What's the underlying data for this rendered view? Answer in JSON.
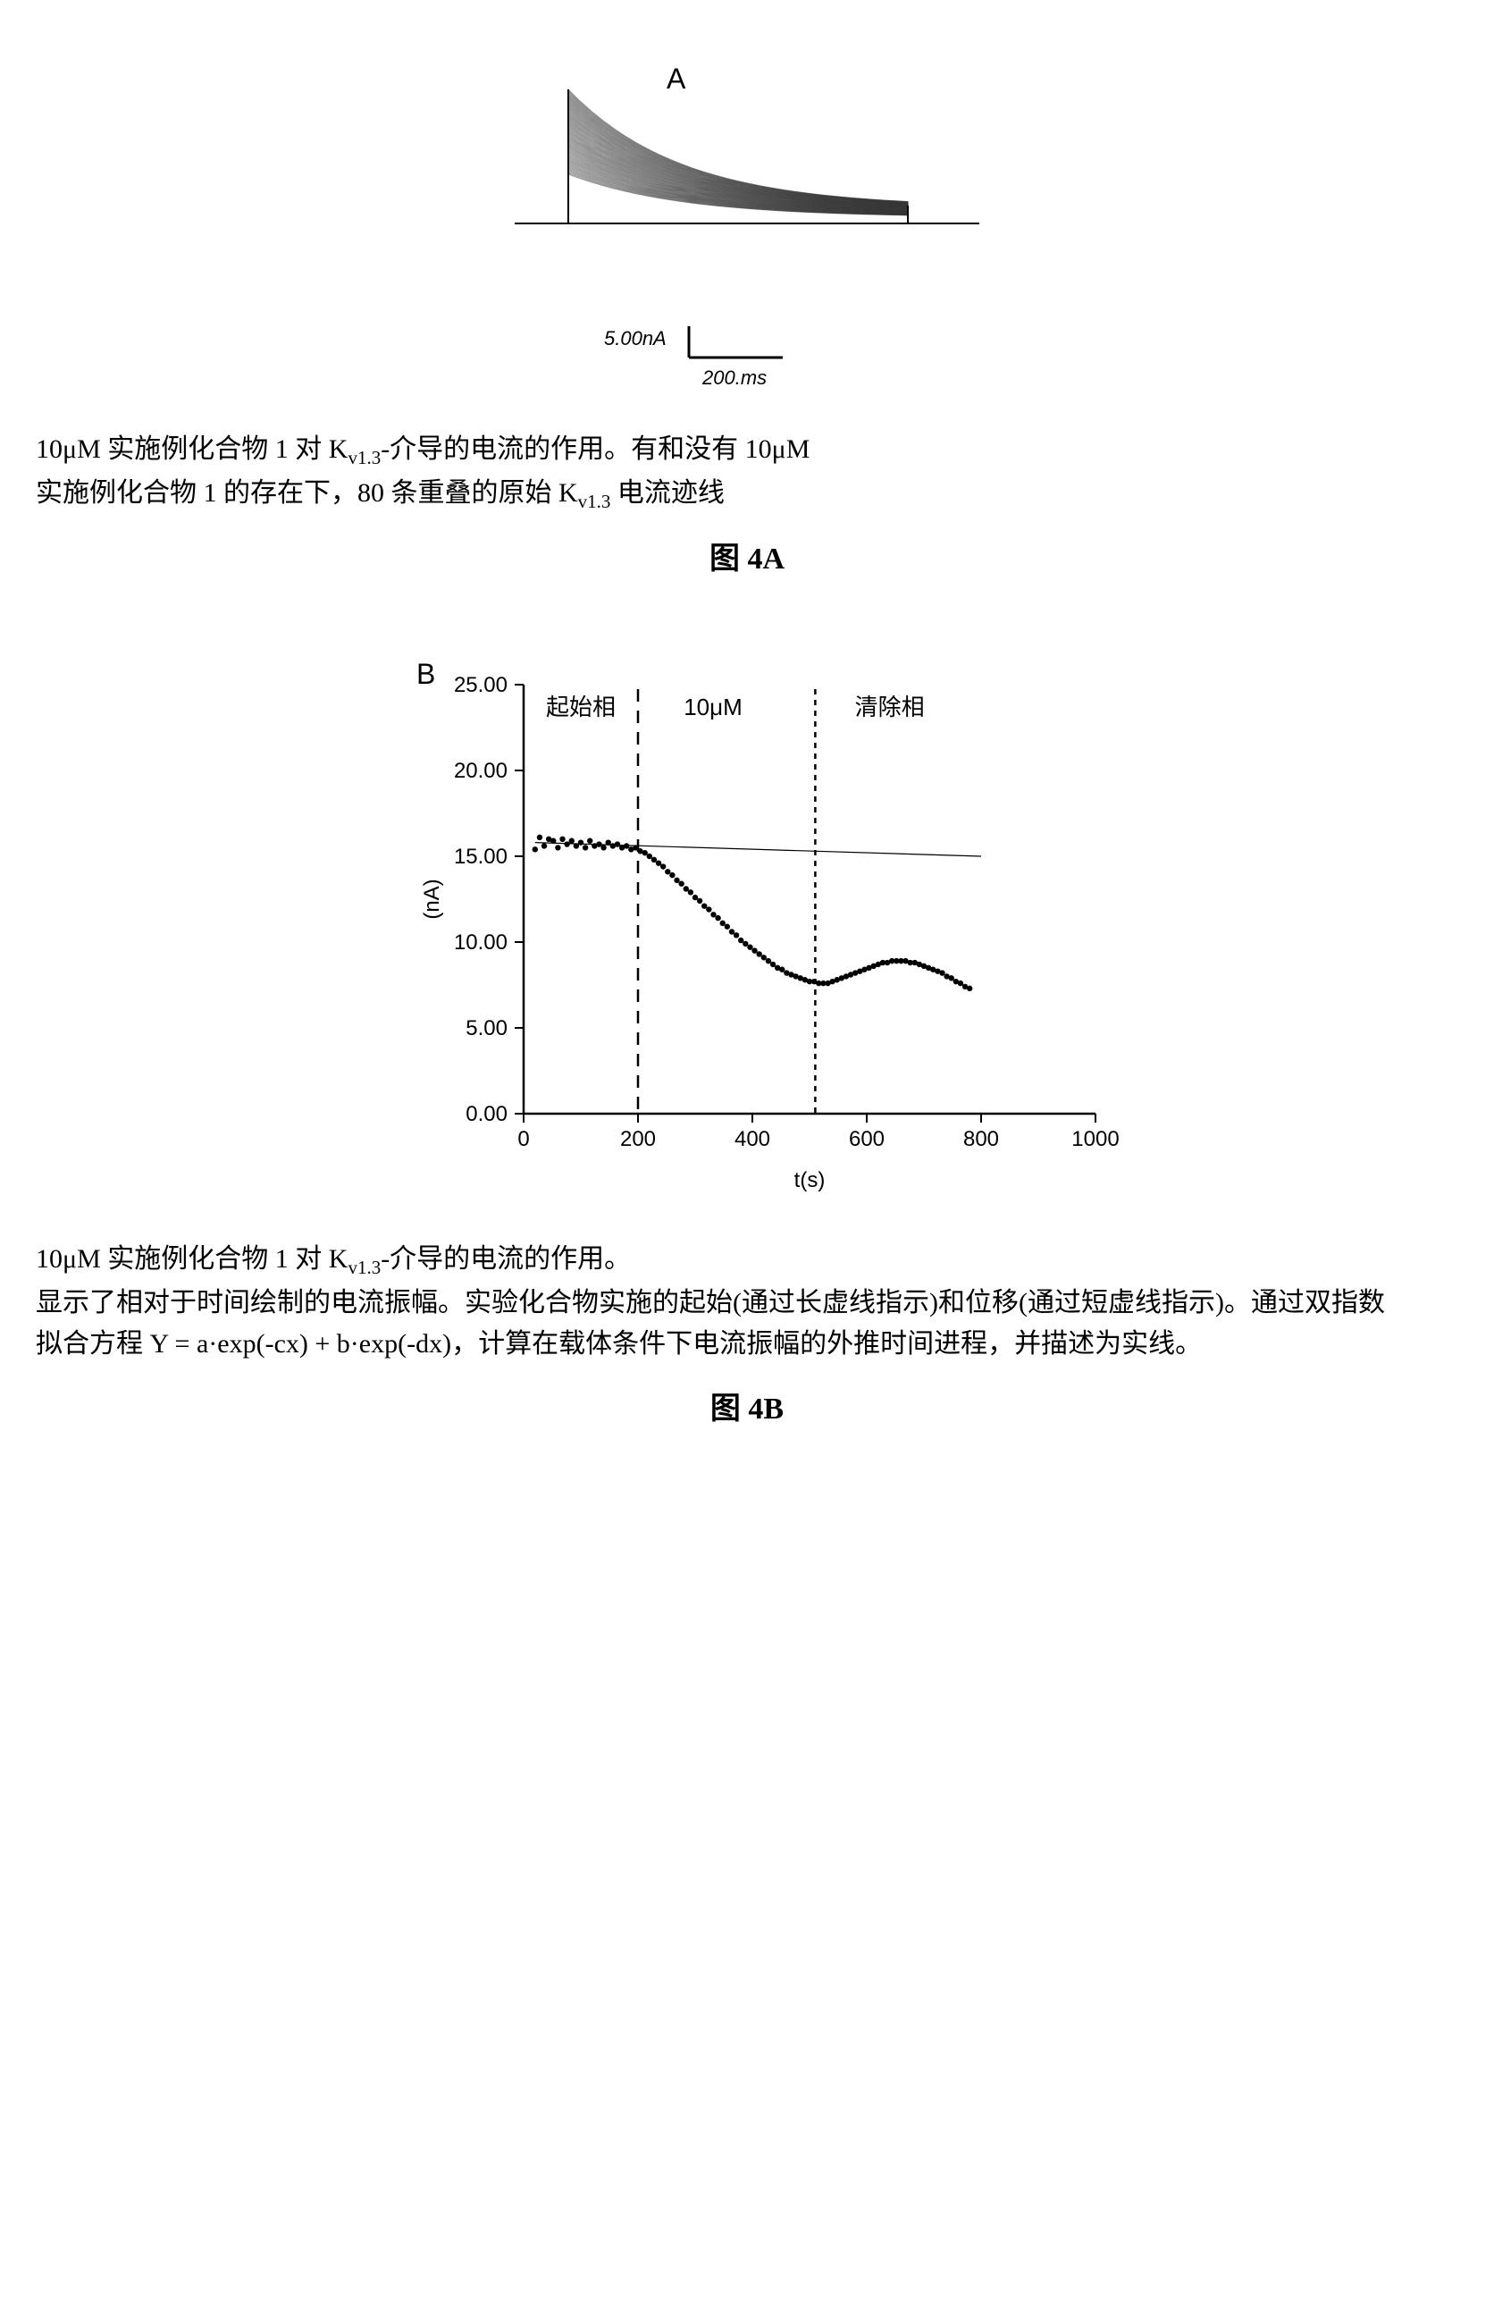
{
  "figureA": {
    "panel_label": "A",
    "scale_y": "5.00nA",
    "scale_x": "200.ms",
    "scale_line_color": "#000000",
    "trace_count": 80,
    "trace_color": "#2b2b2b",
    "baseline_color": "#000000",
    "caption_line1": "10μM 实施例化合物 1 对 K",
    "caption_sub1": "v1.3",
    "caption_line1b": "-介导的电流的作用。有和没有 10μM",
    "caption_line2a": "实施例化合物 1 的存在下，80 条重叠的原始 K",
    "caption_sub2": "v1.3",
    "caption_line2b": " 电流迹线",
    "title": "图 4A"
  },
  "figureB": {
    "panel_label": "B",
    "chart": {
      "type": "scatter-line",
      "xlim": [
        0,
        1000
      ],
      "ylim": [
        0,
        25
      ],
      "xticks": [
        0,
        200,
        400,
        600,
        800,
        1000
      ],
      "yticks": [
        0.0,
        5.0,
        10.0,
        15.0,
        20.0,
        25.0
      ],
      "ytick_labels": [
        "0.00",
        "5.00",
        "10.00",
        "15.00",
        "20.00",
        "25.00"
      ],
      "xlabel": "t(s)",
      "ylabel": "(nA)",
      "axis_color": "#000000",
      "tick_fontsize": 24,
      "label_fontsize": 24,
      "background_color": "#ffffff",
      "phase_start_label": "起始相",
      "phase_conc_label": "10μM",
      "phase_wash_label": "清除相",
      "vline1_x": 200,
      "vline2_x": 510,
      "vline1_dash": "14 10",
      "vline2_dash": "6 6",
      "vline_color": "#000000",
      "fit_line_color": "#000000",
      "fit_line_width": 1.2,
      "fit_points": [
        {
          "x": 20,
          "y": 15.8
        },
        {
          "x": 800,
          "y": 15.0
        }
      ],
      "marker_color": "#000000",
      "marker_size": 3.2,
      "data_points": [
        {
          "x": 20,
          "y": 15.4
        },
        {
          "x": 28,
          "y": 16.1
        },
        {
          "x": 36,
          "y": 15.6
        },
        {
          "x": 44,
          "y": 16.0
        },
        {
          "x": 52,
          "y": 15.9
        },
        {
          "x": 60,
          "y": 15.5
        },
        {
          "x": 68,
          "y": 16.0
        },
        {
          "x": 76,
          "y": 15.7
        },
        {
          "x": 84,
          "y": 15.9
        },
        {
          "x": 92,
          "y": 15.6
        },
        {
          "x": 100,
          "y": 15.8
        },
        {
          "x": 108,
          "y": 15.5
        },
        {
          "x": 116,
          "y": 15.9
        },
        {
          "x": 124,
          "y": 15.6
        },
        {
          "x": 132,
          "y": 15.7
        },
        {
          "x": 140,
          "y": 15.5
        },
        {
          "x": 148,
          "y": 15.8
        },
        {
          "x": 156,
          "y": 15.6
        },
        {
          "x": 164,
          "y": 15.7
        },
        {
          "x": 172,
          "y": 15.5
        },
        {
          "x": 180,
          "y": 15.6
        },
        {
          "x": 188,
          "y": 15.4
        },
        {
          "x": 196,
          "y": 15.5
        },
        {
          "x": 204,
          "y": 15.3
        },
        {
          "x": 212,
          "y": 15.2
        },
        {
          "x": 220,
          "y": 15.0
        },
        {
          "x": 228,
          "y": 14.8
        },
        {
          "x": 236,
          "y": 14.6
        },
        {
          "x": 244,
          "y": 14.4
        },
        {
          "x": 252,
          "y": 14.1
        },
        {
          "x": 260,
          "y": 13.9
        },
        {
          "x": 268,
          "y": 13.6
        },
        {
          "x": 276,
          "y": 13.4
        },
        {
          "x": 284,
          "y": 13.1
        },
        {
          "x": 292,
          "y": 12.9
        },
        {
          "x": 300,
          "y": 12.6
        },
        {
          "x": 308,
          "y": 12.4
        },
        {
          "x": 316,
          "y": 12.1
        },
        {
          "x": 324,
          "y": 11.9
        },
        {
          "x": 332,
          "y": 11.6
        },
        {
          "x": 340,
          "y": 11.4
        },
        {
          "x": 348,
          "y": 11.1
        },
        {
          "x": 356,
          "y": 10.9
        },
        {
          "x": 364,
          "y": 10.6
        },
        {
          "x": 372,
          "y": 10.4
        },
        {
          "x": 380,
          "y": 10.1
        },
        {
          "x": 388,
          "y": 9.9
        },
        {
          "x": 396,
          "y": 9.7
        },
        {
          "x": 404,
          "y": 9.5
        },
        {
          "x": 412,
          "y": 9.3
        },
        {
          "x": 420,
          "y": 9.1
        },
        {
          "x": 428,
          "y": 8.9
        },
        {
          "x": 436,
          "y": 8.7
        },
        {
          "x": 444,
          "y": 8.5
        },
        {
          "x": 452,
          "y": 8.4
        },
        {
          "x": 460,
          "y": 8.2
        },
        {
          "x": 468,
          "y": 8.1
        },
        {
          "x": 476,
          "y": 8.0
        },
        {
          "x": 484,
          "y": 7.9
        },
        {
          "x": 492,
          "y": 7.8
        },
        {
          "x": 500,
          "y": 7.7
        },
        {
          "x": 508,
          "y": 7.7
        },
        {
          "x": 516,
          "y": 7.6
        },
        {
          "x": 524,
          "y": 7.6
        },
        {
          "x": 532,
          "y": 7.6
        },
        {
          "x": 540,
          "y": 7.7
        },
        {
          "x": 548,
          "y": 7.8
        },
        {
          "x": 556,
          "y": 7.9
        },
        {
          "x": 564,
          "y": 8.0
        },
        {
          "x": 572,
          "y": 8.1
        },
        {
          "x": 580,
          "y": 8.2
        },
        {
          "x": 588,
          "y": 8.3
        },
        {
          "x": 596,
          "y": 8.4
        },
        {
          "x": 604,
          "y": 8.5
        },
        {
          "x": 612,
          "y": 8.6
        },
        {
          "x": 620,
          "y": 8.7
        },
        {
          "x": 628,
          "y": 8.8
        },
        {
          "x": 636,
          "y": 8.8
        },
        {
          "x": 644,
          "y": 8.9
        },
        {
          "x": 652,
          "y": 8.9
        },
        {
          "x": 660,
          "y": 8.9
        },
        {
          "x": 668,
          "y": 8.9
        },
        {
          "x": 676,
          "y": 8.8
        },
        {
          "x": 684,
          "y": 8.8
        },
        {
          "x": 692,
          "y": 8.7
        },
        {
          "x": 700,
          "y": 8.6
        },
        {
          "x": 708,
          "y": 8.5
        },
        {
          "x": 716,
          "y": 8.4
        },
        {
          "x": 724,
          "y": 8.3
        },
        {
          "x": 732,
          "y": 8.2
        },
        {
          "x": 740,
          "y": 8.0
        },
        {
          "x": 748,
          "y": 7.9
        },
        {
          "x": 756,
          "y": 7.7
        },
        {
          "x": 764,
          "y": 7.6
        },
        {
          "x": 772,
          "y": 7.4
        },
        {
          "x": 780,
          "y": 7.3
        }
      ]
    },
    "caption_line1a": "10μM 实施例化合物 1 对 K",
    "caption_sub1": "v1.3",
    "caption_line1b": "-介导的电流的作用。",
    "caption_line2": "显示了相对于时间绘制的电流振幅。实验化合物实施的起始(通过长虚线指示)和位移(通过短虚线指示)。通过双指数拟合方程 Y = a·exp(-cx) + b·exp(-dx)，计算在载体条件下电流振幅的外推时间进程，并描述为实线。",
    "title": "图 4B"
  }
}
